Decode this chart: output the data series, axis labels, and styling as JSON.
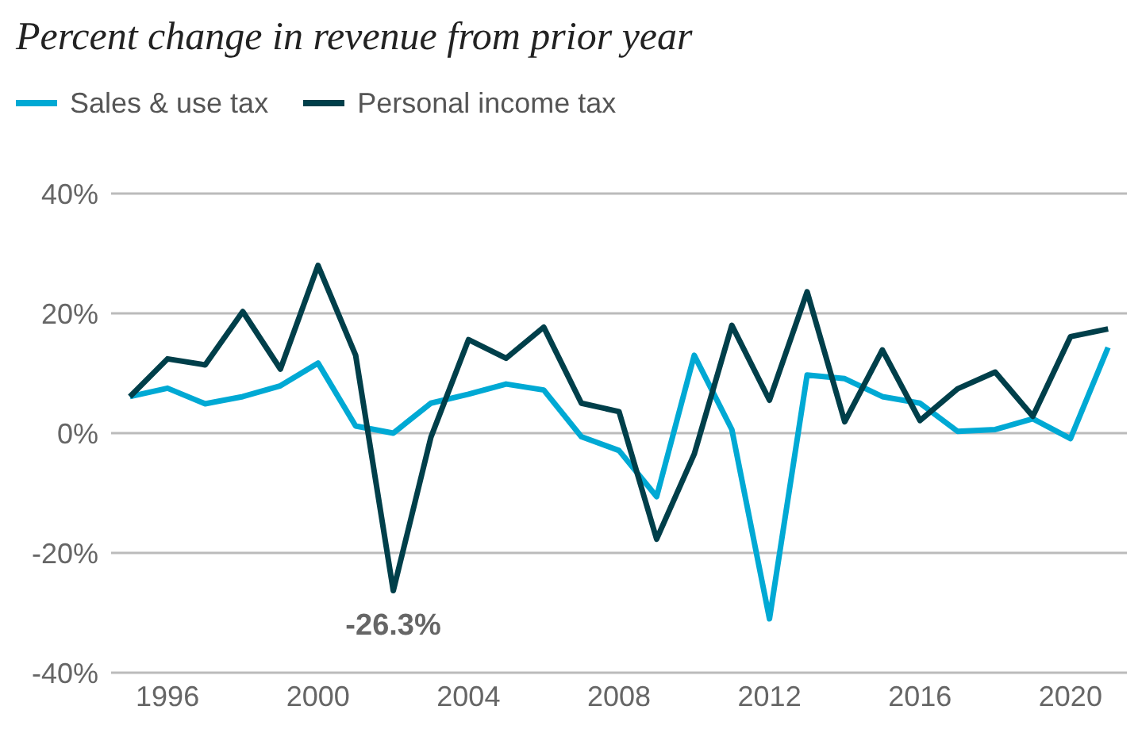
{
  "chart_data": {
    "type": "line",
    "title": "Percent change in revenue from prior year",
    "x": [
      1995,
      1996,
      1997,
      1998,
      1999,
      2000,
      2001,
      2002,
      2003,
      2004,
      2005,
      2006,
      2007,
      2008,
      2009,
      2010,
      2011,
      2012,
      2013,
      2014,
      2015,
      2016,
      2017,
      2018,
      2019,
      2020,
      2021
    ],
    "series": [
      {
        "name": "Sales & use tax",
        "color": "#00a9d4",
        "values": [
          6.1,
          7.5,
          4.9,
          6.1,
          7.9,
          11.7,
          1.2,
          0.0,
          5.0,
          6.5,
          8.2,
          7.2,
          -0.6,
          -2.9,
          -10.6,
          13.0,
          0.6,
          -31.0,
          9.7,
          9.1,
          6.1,
          5.0,
          0.3,
          0.6,
          2.4,
          -0.9,
          14.3
        ]
      },
      {
        "name": "Personal income tax",
        "color": "#003f4a",
        "values": [
          6.1,
          12.4,
          11.4,
          20.3,
          10.7,
          28.0,
          13.0,
          -26.3,
          -0.7,
          15.6,
          12.5,
          17.7,
          5.0,
          3.6,
          -17.7,
          -3.5,
          18.0,
          5.5,
          23.6,
          1.9,
          13.9,
          2.1,
          7.4,
          10.2,
          2.8,
          16.1,
          17.4
        ]
      }
    ],
    "annotations": [
      {
        "text": "-26.3%",
        "x": 2002,
        "y": -26.3
      }
    ],
    "xlim": [
      1994.5,
      2021.5
    ],
    "xticks": [
      1996,
      2000,
      2004,
      2008,
      2012,
      2016,
      2020
    ],
    "ylim": [
      -40,
      40
    ],
    "yticks": [
      {
        "value": -40,
        "label": "-40%"
      },
      {
        "value": -20,
        "label": "-20%"
      },
      {
        "value": 0,
        "label": "0%"
      },
      {
        "value": 20,
        "label": "20%"
      },
      {
        "value": 40,
        "label": "40%"
      }
    ],
    "grid": "y",
    "legend": "top left",
    "marker": "none",
    "line_style": "solid"
  }
}
